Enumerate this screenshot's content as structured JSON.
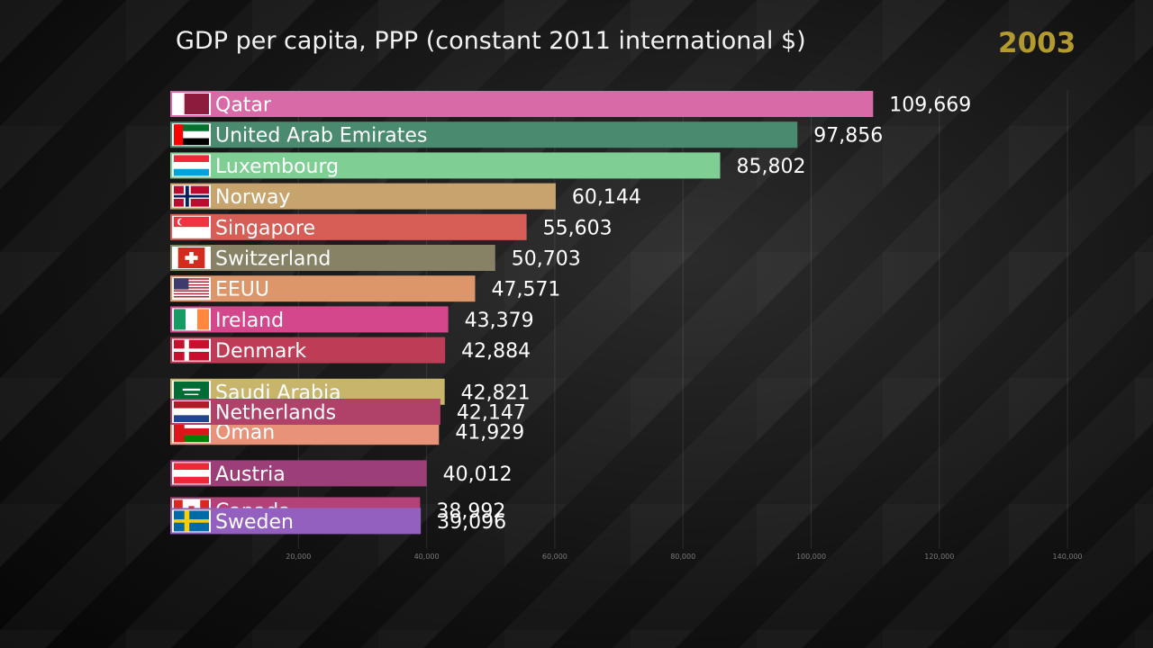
{
  "chart_data": {
    "type": "bar",
    "title": "GDP per capita, PPP (constant 2011 international $)",
    "year": "2003",
    "xlim": [
      0,
      140000
    ],
    "x_ticks": [
      {
        "value": 20000,
        "label": "20,000"
      },
      {
        "value": 40000,
        "label": "40,000"
      },
      {
        "value": 60000,
        "label": "60,000"
      },
      {
        "value": 80000,
        "label": "80,000"
      },
      {
        "value": 100000,
        "label": "100,000"
      },
      {
        "value": 120000,
        "label": "120,000"
      },
      {
        "value": 140000,
        "label": "140,000"
      }
    ],
    "bars": [
      {
        "country": "Qatar",
        "value": 109669,
        "label": "109,669",
        "color": "#d96aa8",
        "flag": "qatar-flag",
        "rank": 0
      },
      {
        "country": "United Arab Emirates",
        "value": 97856,
        "label": "97,856",
        "color": "#4a8a6e",
        "flag": "uae-flag",
        "rank": 1
      },
      {
        "country": "Luxembourg",
        "value": 85802,
        "label": "85,802",
        "color": "#7fcf95",
        "flag": "luxembourg-flag",
        "rank": 2
      },
      {
        "country": "Norway",
        "value": 60144,
        "label": "60,144",
        "color": "#c7a46e",
        "flag": "norway-flag",
        "rank": 3
      },
      {
        "country": "Singapore",
        "value": 55603,
        "label": "55,603",
        "color": "#d65e57",
        "flag": "singapore-flag",
        "rank": 4
      },
      {
        "country": "Switzerland",
        "value": 50703,
        "label": "50,703",
        "color": "#878266",
        "flag": "switzerland-flag",
        "rank": 5
      },
      {
        "country": "EEUU",
        "value": 47571,
        "label": "47,571",
        "color": "#dd966a",
        "flag": "usa-flag",
        "rank": 6
      },
      {
        "country": "Ireland",
        "value": 43379,
        "label": "43,379",
        "color": "#d4478c",
        "flag": "ireland-flag",
        "rank": 7
      },
      {
        "country": "Denmark",
        "value": 42884,
        "label": "42,884",
        "color": "#bf3c56",
        "flag": "denmark-flag",
        "rank": 8
      },
      {
        "country": "Saudi Arabia",
        "value": 42821,
        "label": "42,821",
        "color": "#c8b56c",
        "flag": "saudi-flag",
        "rank": 9.35
      },
      {
        "country": "Oman",
        "value": 41929,
        "label": "41,929",
        "color": "#e8927a",
        "flag": "oman-flag",
        "rank": 10.65
      },
      {
        "country": "Netherlands",
        "value": 42147,
        "label": "42,147",
        "color": "#b0426a",
        "flag": "netherlands-flag",
        "rank": 10.0
      },
      {
        "country": "Austria",
        "value": 40012,
        "label": "40,012",
        "color": "#9c3e78",
        "flag": "austria-flag",
        "rank": 12.0
      },
      {
        "country": "Canada",
        "value": 38992,
        "label": "38,992",
        "color": "#b24278",
        "flag": "canada-flag",
        "rank": 13.2
      },
      {
        "country": "Sweden",
        "value": 39096,
        "label": "39,096",
        "color": "#9360bf",
        "flag": "sweden-flag",
        "rank": 13.55
      }
    ]
  }
}
